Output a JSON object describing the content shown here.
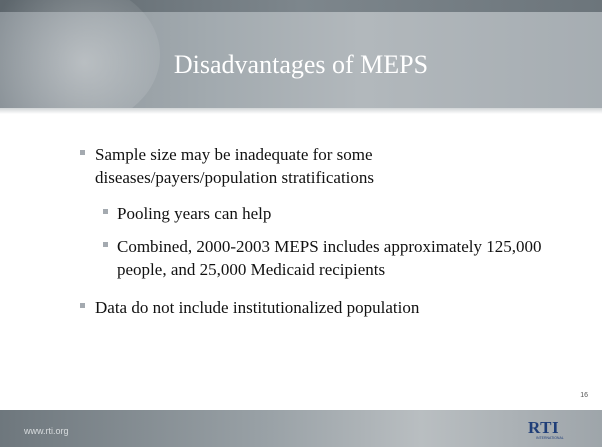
{
  "slide": {
    "title": "Disadvantages of MEPS",
    "bullets": [
      {
        "text": "Sample size may be inadequate for some diseases/payers/population stratifications",
        "sub": [
          "Pooling years can help",
          "Combined, 2000-2003 MEPS includes approximately 125,000 people, and 25,000 Medicaid recipients"
        ]
      },
      {
        "text": "Data do not include institutionalized population"
      }
    ],
    "slide_number": "16",
    "footer_url": "www.rti.org",
    "logo": "RTI",
    "logo_sub": "INTERNATIONAL"
  }
}
